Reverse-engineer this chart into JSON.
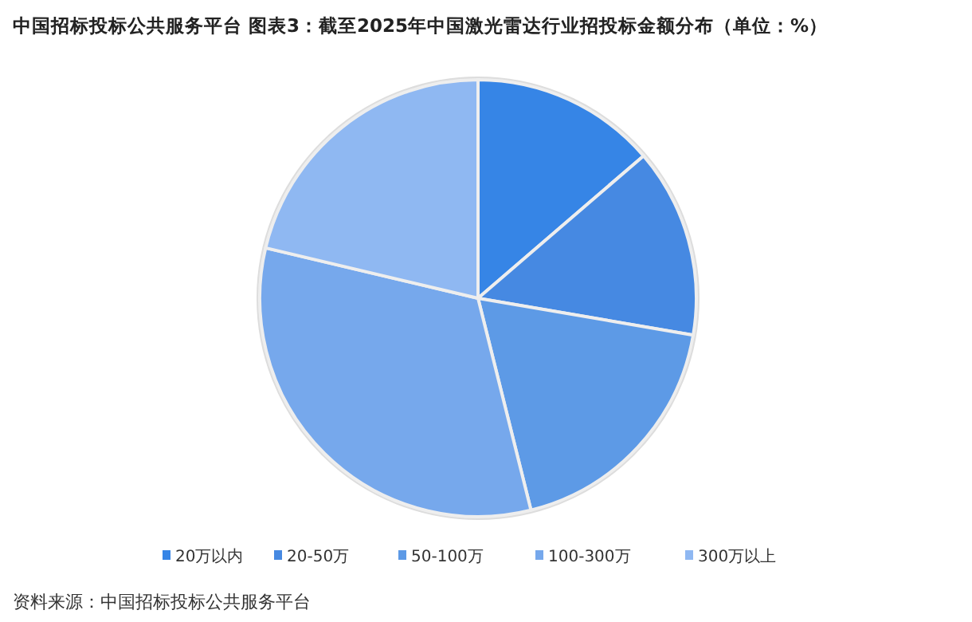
{
  "chart_data": {
    "type": "pie",
    "title": "中国招标投标公共服务平台 图表3：截至2025年中国激光雷达行业招投标金额分布（单位：%）",
    "categories": [
      "20万以内",
      "20-50万",
      "50-100万",
      "100-300万",
      "300万以上"
    ],
    "values": [
      13.7,
      14.0,
      18.4,
      32.6,
      21.3
    ],
    "colors": [
      "#3685e6",
      "#4689e2",
      "#5d9ae6",
      "#76a8ec",
      "#8fb8f2"
    ],
    "legend": "bottom",
    "annotations": [
      "资料来源：中国招标投标公共服务平台"
    ]
  }
}
